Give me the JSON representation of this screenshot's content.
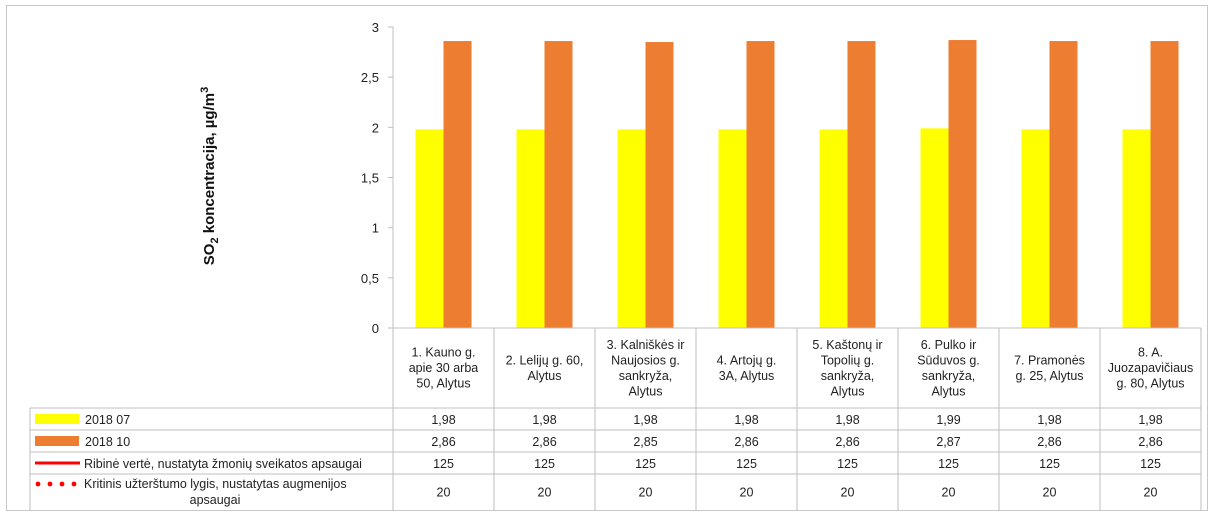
{
  "chart_data": {
    "type": "bar",
    "ylabel": "SO",
    "ylabel_sub": "2",
    "ylabel_rest": " koncentracija, µg/m",
    "ylabel_sup": "3",
    "ylim": [
      0,
      3
    ],
    "yticks": [
      "0",
      "0,5",
      "1",
      "1,5",
      "2",
      "2,5",
      "3"
    ],
    "ytick_values": [
      0,
      0.5,
      1,
      1.5,
      2,
      2.5,
      3
    ],
    "categories": [
      [
        "1. Kauno g.",
        "apie 30 arba",
        "50, Alytus"
      ],
      [
        "2. Lelijų g. 60,",
        "Alytus"
      ],
      [
        "3. Kalniškės ir",
        "Naujosios g.",
        "sankryža,",
        "Alytus"
      ],
      [
        "4. Artojų g.",
        "3A, Alytus"
      ],
      [
        "5. Kaštonų ir",
        "Topolių g.",
        "sankryža,",
        "Alytus"
      ],
      [
        "6. Pulko ir",
        "Sūduvos g.",
        "sankryža,",
        "Alytus"
      ],
      [
        "7. Pramonės",
        "g. 25, Alytus"
      ],
      [
        "8. A.",
        "Juozapavičiaus",
        "g. 80, Alytus"
      ]
    ],
    "series": [
      {
        "name": "2018 07",
        "color": "#ffff00",
        "style": "bar",
        "values": [
          1.98,
          1.98,
          1.98,
          1.98,
          1.98,
          1.99,
          1.98,
          1.98
        ],
        "labels": [
          "1,98",
          "1,98",
          "1,98",
          "1,98",
          "1,98",
          "1,99",
          "1,98",
          "1,98"
        ]
      },
      {
        "name": "2018 10",
        "color": "#ed7d31",
        "style": "bar",
        "values": [
          2.86,
          2.86,
          2.85,
          2.86,
          2.86,
          2.87,
          2.86,
          2.86
        ],
        "labels": [
          "2,86",
          "2,86",
          "2,85",
          "2,86",
          "2,86",
          "2,87",
          "2,86",
          "2,86"
        ]
      },
      {
        "name": "Ribinė vertė, nustatyta žmonių sveikatos apsaugai",
        "color": "#ff0000",
        "style": "line",
        "values": [
          125,
          125,
          125,
          125,
          125,
          125,
          125,
          125
        ],
        "labels": [
          "125",
          "125",
          "125",
          "125",
          "125",
          "125",
          "125",
          "125"
        ]
      },
      {
        "name_lines": [
          "Kritinis užterštumo lygis, nustatytas augmenijos",
          "apsaugai"
        ],
        "color": "#ff0000",
        "style": "dotted",
        "values": [
          20,
          20,
          20,
          20,
          20,
          20,
          20,
          20
        ],
        "labels": [
          "20",
          "20",
          "20",
          "20",
          "20",
          "20",
          "20",
          "20"
        ]
      }
    ],
    "grid": false,
    "legend": "data-table"
  }
}
